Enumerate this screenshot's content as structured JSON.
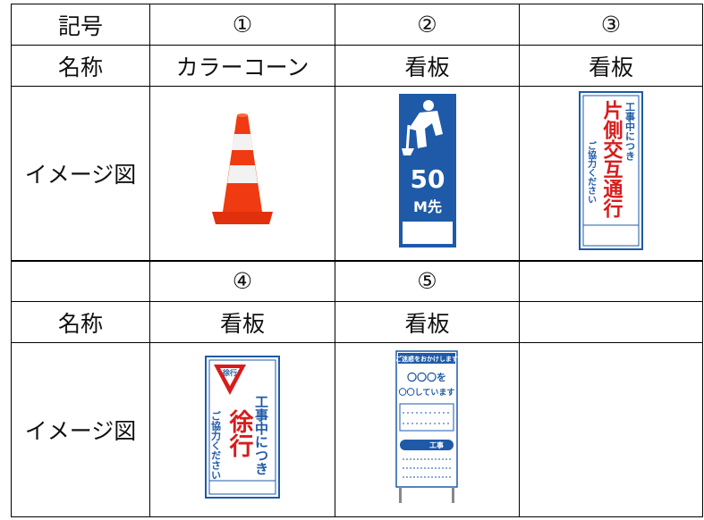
{
  "table": {
    "rows": [
      [
        "記号",
        "①",
        "②",
        "③"
      ],
      [
        "名称",
        "カラーコーン",
        "看板",
        "看板"
      ],
      [
        "イメージ図",
        null,
        null,
        null
      ],
      [
        null,
        "④",
        "⑤",
        null
      ],
      [
        "名称",
        "看板",
        "看板",
        null
      ],
      [
        "イメージ図",
        null,
        null,
        null
      ]
    ]
  },
  "images": {
    "sign_2": {
      "distance": "50",
      "unit": "M先"
    },
    "sign_3": {
      "top": "工事中につき",
      "main": "片側交互通行",
      "bottom": "ご協力ください"
    },
    "sign_4": {
      "mark": "徐行",
      "top": "工事中につき",
      "main": "徐行",
      "bottom": "ご協力ください"
    },
    "sign_5": {
      "header": "ご迷惑をおかけします",
      "line_1": "〇〇〇を",
      "line_2": "〇〇しています",
      "band": "工事"
    }
  }
}
